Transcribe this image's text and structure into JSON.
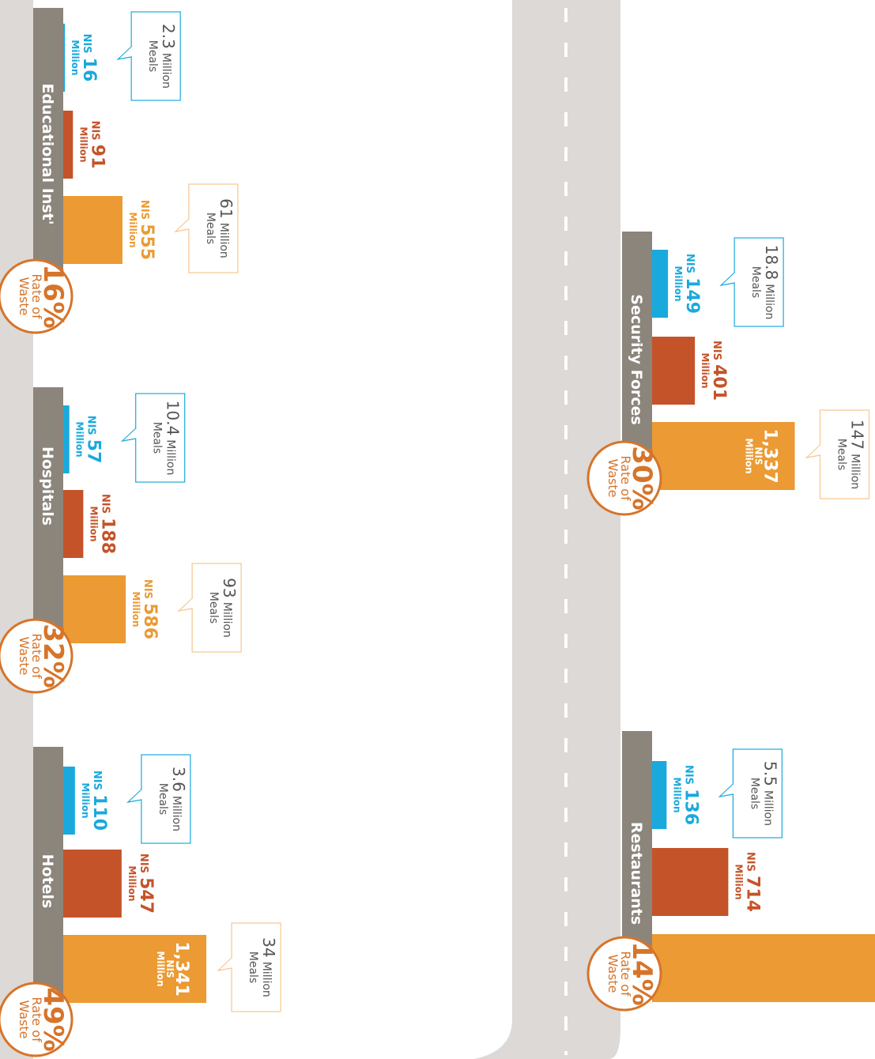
{
  "chart_data": {
    "type": "bar",
    "colors": [
      "#1aa9dc",
      "#c4532a",
      "#eb9a34"
    ],
    "labels": {
      "currency": "NIS",
      "unit": "Million",
      "meals": "Meals",
      "rate": "Rate of",
      "waste": "Waste"
    },
    "sectors": [
      {
        "name": "Educational Inst'",
        "values": [
          16,
          91,
          555
        ],
        "meals": [
          2.3,
          61
        ],
        "rate_label": "16%"
      },
      {
        "name": "Hospitals",
        "values": [
          57,
          188,
          586
        ],
        "meals": [
          10.4,
          93
        ],
        "rate_label": "32%"
      },
      {
        "name": "Hotels",
        "values": [
          110,
          547,
          1341
        ],
        "value_labels": [
          "110",
          "547",
          "1,341"
        ],
        "meals": [
          3.6,
          34
        ],
        "rate_label": "49%"
      },
      {
        "name": "Security Forces",
        "values": [
          149,
          401,
          1337
        ],
        "value_labels": [
          "149",
          "401",
          "1,337"
        ],
        "meals": [
          18.8,
          147
        ],
        "rate_label": "30%"
      },
      {
        "name": "Restaurants",
        "values": [
          136,
          714
        ],
        "meals": [
          5.5
        ],
        "rate_label": "14%"
      }
    ]
  }
}
